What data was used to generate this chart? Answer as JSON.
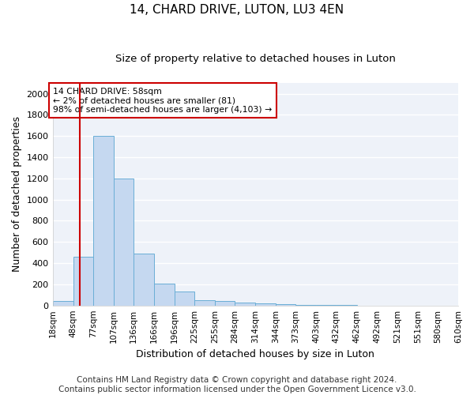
{
  "title": "14, CHARD DRIVE, LUTON, LU3 4EN",
  "subtitle": "Size of property relative to detached houses in Luton",
  "xlabel": "Distribution of detached houses by size in Luton",
  "ylabel": "Number of detached properties",
  "footer_line1": "Contains HM Land Registry data © Crown copyright and database right 2024.",
  "footer_line2": "Contains public sector information licensed under the Open Government Licence v3.0.",
  "bin_edges": [
    18,
    48,
    77,
    107,
    136,
    166,
    196,
    225,
    255,
    284,
    314,
    344,
    373,
    403,
    432,
    462,
    492,
    521,
    551,
    580,
    610
  ],
  "bar_heights": [
    40,
    460,
    1600,
    1200,
    490,
    210,
    130,
    50,
    40,
    25,
    20,
    10,
    5,
    3,
    2,
    1,
    1,
    0,
    0,
    0
  ],
  "bar_color": "#c5d8f0",
  "bar_edge_color": "#6aaed6",
  "property_size": 58,
  "property_line_color": "#cc0000",
  "annotation_text": "14 CHARD DRIVE: 58sqm\n← 2% of detached houses are smaller (81)\n98% of semi-detached houses are larger (4,103) →",
  "annotation_box_color": "#cc0000",
  "ylim": [
    0,
    2100
  ],
  "yticks": [
    0,
    200,
    400,
    600,
    800,
    1000,
    1200,
    1400,
    1600,
    1800,
    2000
  ],
  "background_color": "#ffffff",
  "plot_background": "#eef2f9",
  "grid_color": "#ffffff",
  "title_fontsize": 11,
  "subtitle_fontsize": 9.5,
  "label_fontsize": 9,
  "tick_fontsize": 8,
  "footer_fontsize": 7.5
}
